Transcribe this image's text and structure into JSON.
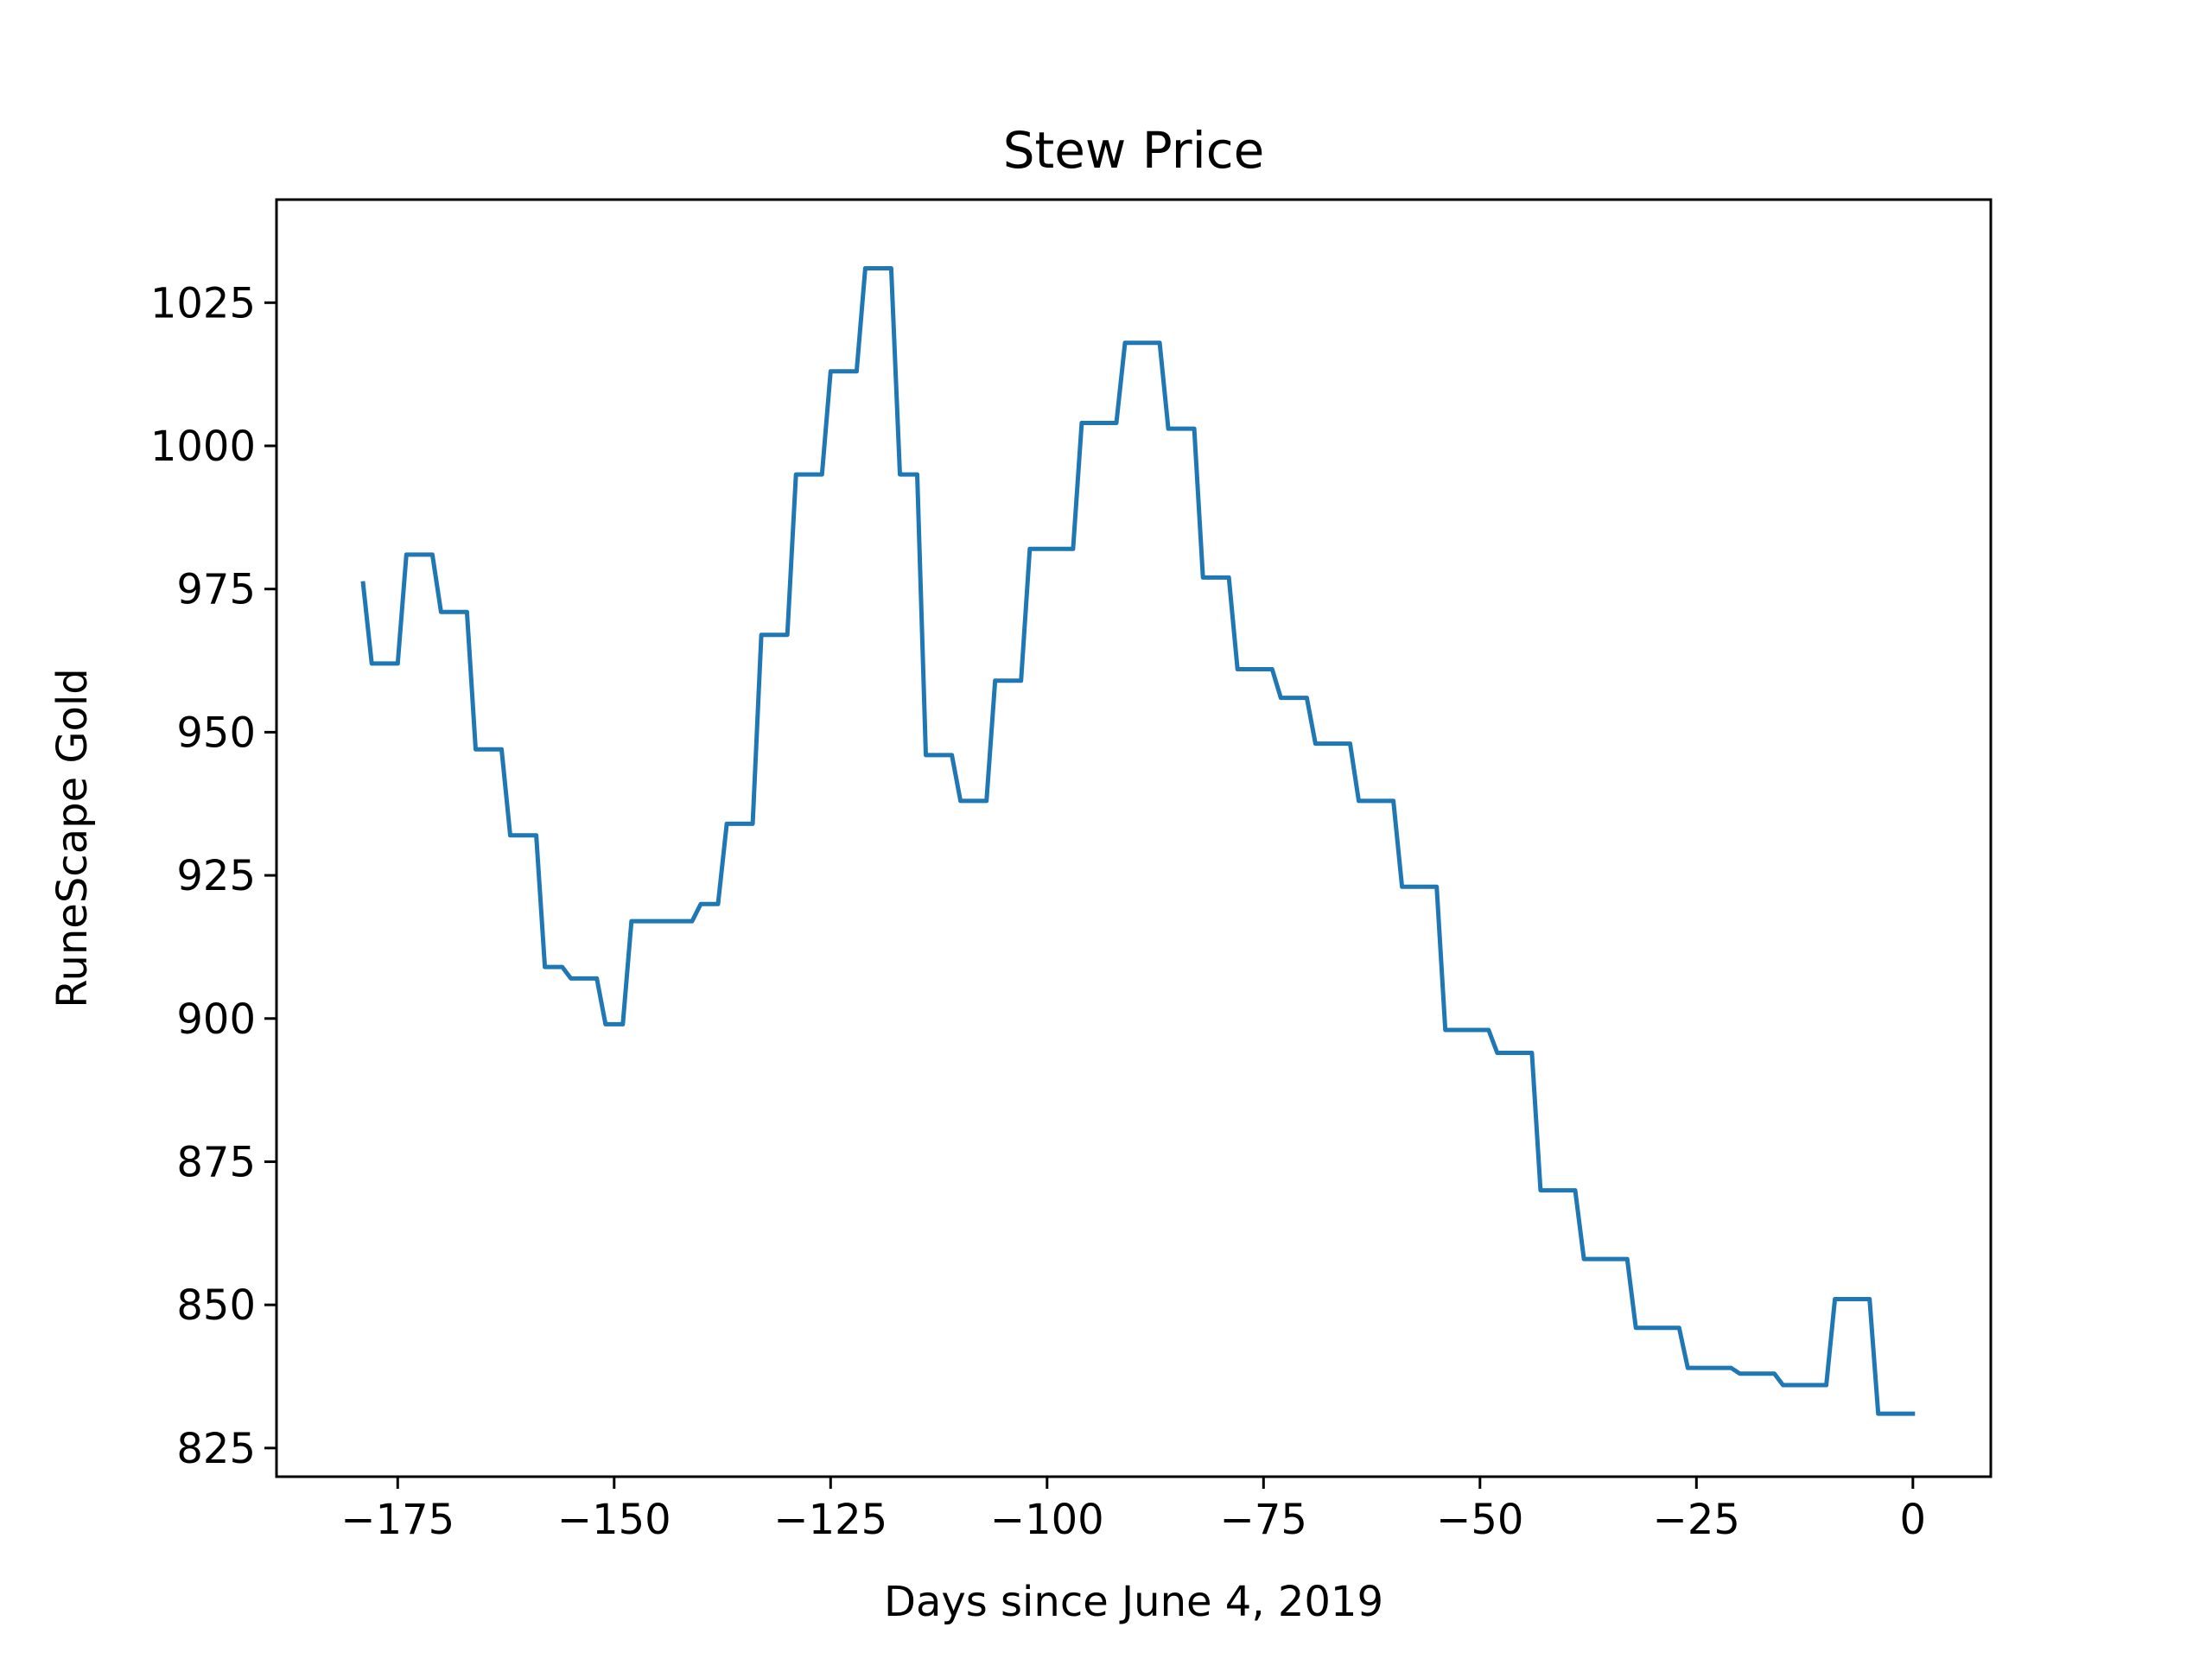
{
  "chart_data": {
    "type": "line",
    "title": "Stew Price",
    "xlabel": "Days since June 4, 2019",
    "ylabel": "RuneScape Gold",
    "xlim": [
      -189,
      9
    ],
    "ylim": [
      820,
      1043
    ],
    "xticks": [
      -175,
      -150,
      -125,
      -100,
      -75,
      -50,
      -25,
      0
    ],
    "xtick_labels": [
      "−175",
      "−150",
      "−125",
      "−100",
      "−75",
      "−50",
      "−25",
      "0"
    ],
    "yticks": [
      825,
      850,
      875,
      900,
      925,
      950,
      975,
      1000,
      1025
    ],
    "ytick_labels": [
      "825",
      "850",
      "875",
      "900",
      "925",
      "950",
      "975",
      "1000",
      "1025"
    ],
    "grid": false,
    "legend": false,
    "line_color": "#1f77b4",
    "series": [
      {
        "x": [
          -179,
          -178,
          -175,
          -174,
          -171,
          -170,
          -167,
          -166,
          -163,
          -162,
          -159,
          -158,
          -156,
          -155,
          -152,
          -151,
          -149,
          -148,
          -141,
          -140,
          -138,
          -137,
          -134,
          -133,
          -130,
          -129,
          -126,
          -125,
          -122,
          -121,
          -118,
          -117,
          -115,
          -114,
          -111,
          -110,
          -107,
          -106,
          -103,
          -102,
          -97,
          -96,
          -92,
          -91,
          -87,
          -86,
          -83,
          -82,
          -79,
          -78,
          -74,
          -73,
          -70,
          -69,
          -65,
          -64,
          -60,
          -59,
          -55,
          -54,
          -49,
          -48,
          -44,
          -43,
          -39,
          -38,
          -33,
          -32,
          -27,
          -26,
          -21,
          -20,
          -16,
          -15,
          -10,
          -9,
          -5,
          -4,
          0
        ],
        "y": [
          976,
          962,
          962,
          981,
          981,
          971,
          971,
          947,
          947,
          932,
          932,
          909,
          909,
          907,
          907,
          899,
          899,
          917,
          917,
          920,
          920,
          934,
          934,
          967,
          967,
          995,
          995,
          1013,
          1013,
          1031,
          1031,
          995,
          995,
          946,
          946,
          938,
          938,
          959,
          959,
          982,
          982,
          1004,
          1004,
          1018,
          1018,
          1003,
          1003,
          977,
          977,
          961,
          961,
          956,
          956,
          948,
          948,
          938,
          938,
          923,
          923,
          898,
          898,
          894,
          894,
          870,
          870,
          858,
          858,
          846,
          846,
          839,
          839,
          838,
          838,
          836,
          836,
          851,
          851,
          831,
          831
        ]
      }
    ]
  }
}
